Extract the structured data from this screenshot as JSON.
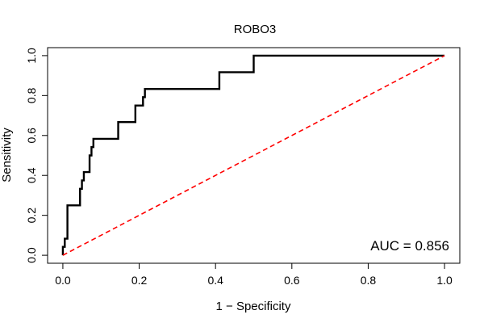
{
  "chart_data": {
    "type": "line",
    "title": "ROBO3",
    "xlabel": "1 − Specificity",
    "ylabel": "Sensitivity",
    "xlim": [
      -0.04,
      1.04
    ],
    "ylim": [
      -0.04,
      1.04
    ],
    "x_ticks": [
      "0.0",
      "0.2",
      "0.4",
      "0.6",
      "0.8",
      "1.0"
    ],
    "y_ticks": [
      "0.0",
      "0.2",
      "0.4",
      "0.6",
      "0.8",
      "1.0"
    ],
    "grid": false,
    "annotation": "AUC = 0.856",
    "annotation_position": "bottom-right",
    "series": [
      {
        "color": "#000000",
        "style": "solid",
        "points": [
          [
            0.0,
            0.0
          ],
          [
            0.0,
            0.042
          ],
          [
            0.005,
            0.042
          ],
          [
            0.005,
            0.083
          ],
          [
            0.012,
            0.083
          ],
          [
            0.012,
            0.25
          ],
          [
            0.045,
            0.25
          ],
          [
            0.045,
            0.333
          ],
          [
            0.05,
            0.333
          ],
          [
            0.05,
            0.375
          ],
          [
            0.055,
            0.375
          ],
          [
            0.055,
            0.417
          ],
          [
            0.07,
            0.417
          ],
          [
            0.07,
            0.5
          ],
          [
            0.075,
            0.5
          ],
          [
            0.075,
            0.542
          ],
          [
            0.08,
            0.542
          ],
          [
            0.08,
            0.583
          ],
          [
            0.145,
            0.583
          ],
          [
            0.145,
            0.667
          ],
          [
            0.19,
            0.667
          ],
          [
            0.19,
            0.75
          ],
          [
            0.21,
            0.75
          ],
          [
            0.21,
            0.792
          ],
          [
            0.215,
            0.792
          ],
          [
            0.215,
            0.833
          ],
          [
            0.41,
            0.833
          ],
          [
            0.41,
            0.917
          ],
          [
            0.5,
            0.917
          ],
          [
            0.5,
            1.0
          ],
          [
            1.0,
            1.0
          ]
        ]
      },
      {
        "color": "#ff0000",
        "style": "dashed",
        "points": [
          [
            0.0,
            0.0
          ],
          [
            1.0,
            1.0
          ]
        ]
      }
    ]
  }
}
